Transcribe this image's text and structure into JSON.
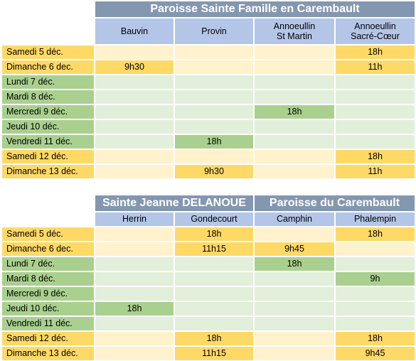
{
  "table1": {
    "title": "Paroisse Sainte Famille en Carembault",
    "columns": [
      "Bauvin",
      "Provin",
      "Annoeullin\nSt Martin",
      "Annoeullin\nSacré-Cœur"
    ],
    "rows": [
      {
        "day": "Samedi 5 déc.",
        "weekend": true,
        "cells": [
          "",
          "",
          "",
          "18h"
        ]
      },
      {
        "day": "Dimanche 6 dec.",
        "weekend": true,
        "cells": [
          "9h30",
          "",
          "",
          "11h"
        ]
      },
      {
        "day": "Lundi 7 déc.",
        "weekend": false,
        "cells": [
          "",
          "",
          "",
          ""
        ]
      },
      {
        "day": "Mardi 8 déc.",
        "weekend": false,
        "cells": [
          "",
          "",
          "",
          ""
        ]
      },
      {
        "day": "Mercredi 9 déc.",
        "weekend": false,
        "cells": [
          "",
          "",
          "18h",
          ""
        ]
      },
      {
        "day": "Jeudi 10 déc.",
        "weekend": false,
        "cells": [
          "",
          "",
          "",
          ""
        ]
      },
      {
        "day": "Vendredi 11 déc.",
        "weekend": false,
        "cells": [
          "",
          "18h",
          "",
          ""
        ]
      },
      {
        "day": "Samedi 12 déc.",
        "weekend": true,
        "cells": [
          "",
          "",
          "",
          "18h"
        ]
      },
      {
        "day": "Dimanche 13 déc.",
        "weekend": true,
        "cells": [
          "",
          "9h30",
          "",
          "11h"
        ]
      }
    ]
  },
  "table2": {
    "title_left": "Sainte Jeanne DELANOUE",
    "title_right": "Paroisse du Carembault",
    "columns": [
      "Herrin",
      "Gondecourt",
      "Camphin",
      "Phalempin"
    ],
    "rows": [
      {
        "day": "Samedi 5 déc.",
        "weekend": true,
        "cells": [
          "",
          "18h",
          "",
          "18h"
        ]
      },
      {
        "day": "Dimanche 6 dec.",
        "weekend": true,
        "cells": [
          "",
          "11h15",
          "9h45",
          ""
        ]
      },
      {
        "day": "Lundi 7 déc.",
        "weekend": false,
        "cells": [
          "",
          "",
          "18h",
          ""
        ]
      },
      {
        "day": "Mardi 8 déc.",
        "weekend": false,
        "cells": [
          "",
          "",
          "",
          "9h"
        ]
      },
      {
        "day": "Mercredi 9 déc.",
        "weekend": false,
        "cells": [
          "",
          "",
          "",
          ""
        ]
      },
      {
        "day": "Jeudi 10 déc.",
        "weekend": false,
        "cells": [
          "18h",
          "",
          "",
          ""
        ]
      },
      {
        "day": "Vendredi 11 déc.",
        "weekend": false,
        "cells": [
          "",
          "",
          "",
          ""
        ]
      },
      {
        "day": "Samedi 12 déc.",
        "weekend": true,
        "cells": [
          "",
          "18h",
          "",
          "18h"
        ]
      },
      {
        "day": "Dimanche 13 déc.",
        "weekend": true,
        "cells": [
          "",
          "11h15",
          "",
          "9h45"
        ]
      }
    ]
  }
}
